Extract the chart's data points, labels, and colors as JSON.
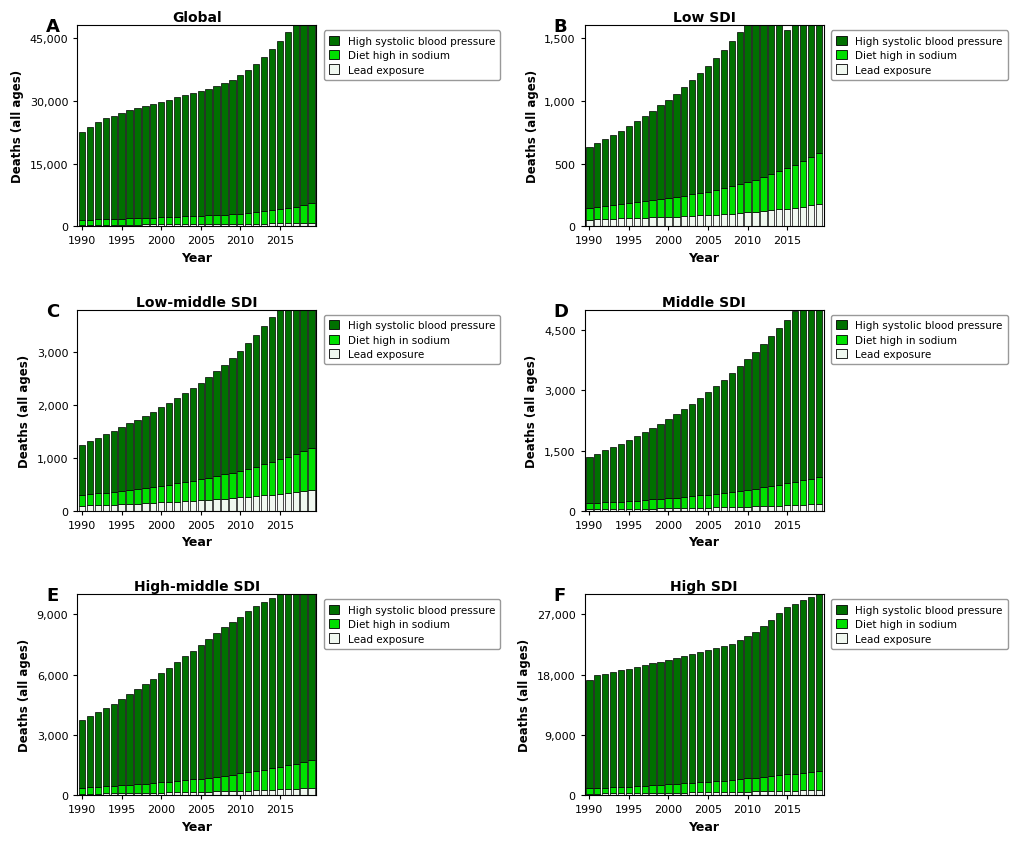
{
  "years": [
    1990,
    1991,
    1992,
    1993,
    1994,
    1995,
    1996,
    1997,
    1998,
    1999,
    2000,
    2001,
    2002,
    2003,
    2004,
    2005,
    2006,
    2007,
    2008,
    2009,
    2010,
    2011,
    2012,
    2013,
    2014,
    2015,
    2016,
    2017,
    2018,
    2019
  ],
  "panels": [
    {
      "label": "A",
      "title": "Global",
      "ylim": [
        0,
        48000
      ],
      "yticks": [
        0,
        15000,
        30000,
        45000
      ],
      "yticklabels": [
        "0",
        "15,000",
        "30,000",
        "45,000"
      ],
      "lead": [
        380,
        390,
        400,
        410,
        420,
        430,
        440,
        450,
        460,
        470,
        480,
        490,
        500,
        515,
        530,
        545,
        560,
        575,
        590,
        605,
        620,
        640,
        660,
        685,
        710,
        740,
        775,
        815,
        860,
        910
      ],
      "diet": [
        1200,
        1250,
        1300,
        1350,
        1400,
        1450,
        1500,
        1550,
        1600,
        1650,
        1700,
        1750,
        1800,
        1860,
        1920,
        1980,
        2050,
        2130,
        2220,
        2320,
        2450,
        2590,
        2750,
        2920,
        3100,
        3300,
        3550,
        3850,
        4200,
        4600
      ],
      "hsbp": [
        21000,
        22200,
        23200,
        24000,
        24500,
        25300,
        25800,
        26200,
        26600,
        27000,
        27500,
        28000,
        28500,
        29000,
        29400,
        29800,
        30200,
        30800,
        31400,
        32100,
        33000,
        34100,
        35400,
        36900,
        38500,
        40200,
        42000,
        43800,
        44500,
        45200
      ]
    },
    {
      "label": "B",
      "title": "Low SDI",
      "ylim": [
        0,
        1600
      ],
      "yticks": [
        0,
        500,
        1000,
        1500
      ],
      "yticklabels": [
        "0",
        "500",
        "1,000",
        "1,500"
      ],
      "lead": [
        55,
        58,
        60,
        62,
        64,
        66,
        68,
        70,
        72,
        74,
        76,
        78,
        81,
        84,
        87,
        90,
        93,
        97,
        101,
        106,
        111,
        116,
        122,
        128,
        135,
        142,
        150,
        158,
        167,
        177
      ],
      "diet": [
        95,
        100,
        105,
        110,
        115,
        120,
        125,
        130,
        136,
        142,
        148,
        155,
        162,
        170,
        178,
        187,
        196,
        206,
        217,
        229,
        242,
        256,
        271,
        287,
        304,
        322,
        341,
        361,
        382,
        404
      ],
      "hsbp": [
        480,
        503,
        528,
        555,
        583,
        613,
        644,
        677,
        711,
        747,
        785,
        824,
        865,
        908,
        953,
        1000,
        1050,
        1102,
        1156,
        1212,
        1270,
        1330,
        1392,
        1456,
        1522,
        1100,
        1130,
        1160,
        1190,
        1220
      ]
    },
    {
      "label": "C",
      "title": "Low-middle SDI",
      "ylim": [
        0,
        3800
      ],
      "yticks": [
        0,
        1000,
        2000,
        3000
      ],
      "yticklabels": [
        "0",
        "1,000",
        "2,000",
        "3,000"
      ],
      "lead": [
        100,
        105,
        110,
        115,
        120,
        126,
        132,
        138,
        144,
        151,
        158,
        165,
        173,
        181,
        190,
        199,
        209,
        219,
        230,
        241,
        253,
        266,
        280,
        294,
        309,
        325,
        342,
        360,
        379,
        399
      ],
      "diet": [
        200,
        210,
        220,
        230,
        241,
        252,
        264,
        276,
        289,
        302,
        316,
        331,
        347,
        363,
        380,
        398,
        417,
        437,
        458,
        480,
        504,
        529,
        556,
        584,
        614,
        646,
        679,
        714,
        751,
        790
      ],
      "hsbp": [
        950,
        1000,
        1050,
        1100,
        1150,
        1200,
        1255,
        1310,
        1365,
        1420,
        1480,
        1545,
        1610,
        1675,
        1745,
        1820,
        1900,
        1985,
        2075,
        2170,
        2270,
        2375,
        2490,
        2610,
        2735,
        2860,
        2985,
        3110,
        3240,
        3370
      ]
    },
    {
      "label": "D",
      "title": "Middle SDI",
      "ylim": [
        0,
        5000
      ],
      "yticks": [
        0,
        1500,
        3000,
        4500
      ],
      "yticklabels": [
        "0",
        "1,500",
        "3,000",
        "4,500"
      ],
      "lead": [
        40,
        42,
        44,
        46,
        48,
        50,
        53,
        55,
        58,
        61,
        64,
        67,
        70,
        74,
        78,
        82,
        86,
        90,
        95,
        100,
        105,
        111,
        117,
        123,
        130,
        137,
        145,
        153,
        162,
        171
      ],
      "diet": [
        150,
        158,
        166,
        175,
        184,
        194,
        204,
        215,
        226,
        238,
        250,
        263,
        277,
        292,
        307,
        323,
        340,
        358,
        377,
        397,
        419,
        442,
        466,
        491,
        518,
        547,
        577,
        609,
        642,
        677
      ],
      "hsbp": [
        1160,
        1225,
        1295,
        1365,
        1440,
        1520,
        1600,
        1685,
        1775,
        1870,
        1970,
        2075,
        2185,
        2300,
        2420,
        2545,
        2675,
        2810,
        2950,
        3095,
        3245,
        3400,
        3560,
        3725,
        3895,
        4070,
        4245,
        4430,
        4615,
        4800
      ]
    },
    {
      "label": "E",
      "title": "High-middle SDI",
      "ylim": [
        0,
        10000
      ],
      "yticks": [
        0,
        3000,
        6000,
        9000
      ],
      "yticklabels": [
        "0",
        "3,000",
        "6,000",
        "9,000"
      ],
      "lead": [
        80,
        84,
        88,
        93,
        98,
        103,
        108,
        114,
        120,
        126,
        133,
        140,
        147,
        155,
        163,
        172,
        181,
        191,
        201,
        212,
        224,
        236,
        249,
        263,
        277,
        293,
        309,
        326,
        345,
        364
      ],
      "diet": [
        300,
        316,
        333,
        351,
        370,
        390,
        411,
        433,
        456,
        481,
        507,
        534,
        563,
        594,
        626,
        660,
        696,
        734,
        774,
        817,
        862,
        909,
        959,
        1011,
        1067,
        1125,
        1187,
        1251,
        1318,
        1389
      ],
      "hsbp": [
        3350,
        3530,
        3710,
        3900,
        4095,
        4300,
        4510,
        4730,
        4955,
        5185,
        5420,
        5660,
        5905,
        6155,
        6405,
        6655,
        6900,
        7140,
        7370,
        7590,
        7800,
        8000,
        8180,
        8340,
        8490,
        8630,
        8755,
        8860,
        8940,
        8990
      ]
    },
    {
      "label": "F",
      "title": "High SDI",
      "ylim": [
        0,
        30000
      ],
      "yticks": [
        0,
        9000,
        18000,
        27000
      ],
      "yticklabels": [
        "0",
        "9,000",
        "18,000",
        "27,000"
      ],
      "lead": [
        250,
        260,
        271,
        282,
        294,
        306,
        319,
        332,
        346,
        360,
        375,
        390,
        406,
        423,
        440,
        458,
        477,
        496,
        516,
        537,
        559,
        582,
        606,
        631,
        657,
        684,
        712,
        741,
        771,
        803
      ],
      "diet": [
        800,
        836,
        874,
        914,
        956,
        1000,
        1046,
        1094,
        1144,
        1197,
        1252,
        1310,
        1370,
        1433,
        1498,
        1566,
        1637,
        1711,
        1788,
        1869,
        1953,
        2041,
        2132,
        2227,
        2326,
        2429,
        2536,
        2648,
        2764,
        2885
      ],
      "hsbp": [
        16200,
        16800,
        17000,
        17200,
        17400,
        17600,
        17800,
        18000,
        18200,
        18400,
        18600,
        18800,
        19000,
        19200,
        19400,
        19600,
        19800,
        20000,
        20300,
        20700,
        21200,
        21800,
        22500,
        23300,
        24200,
        25000,
        25300,
        25700,
        26100,
        26500
      ]
    }
  ],
  "color_hsbp": "#007000",
  "color_diet": "#00e000",
  "color_lead": "#f0f8f0",
  "color_edge": "#000000",
  "legend_labels": [
    "High systolic blood pressure",
    "Diet high in sodium",
    "Lead exposure"
  ],
  "bar_width": 0.8
}
